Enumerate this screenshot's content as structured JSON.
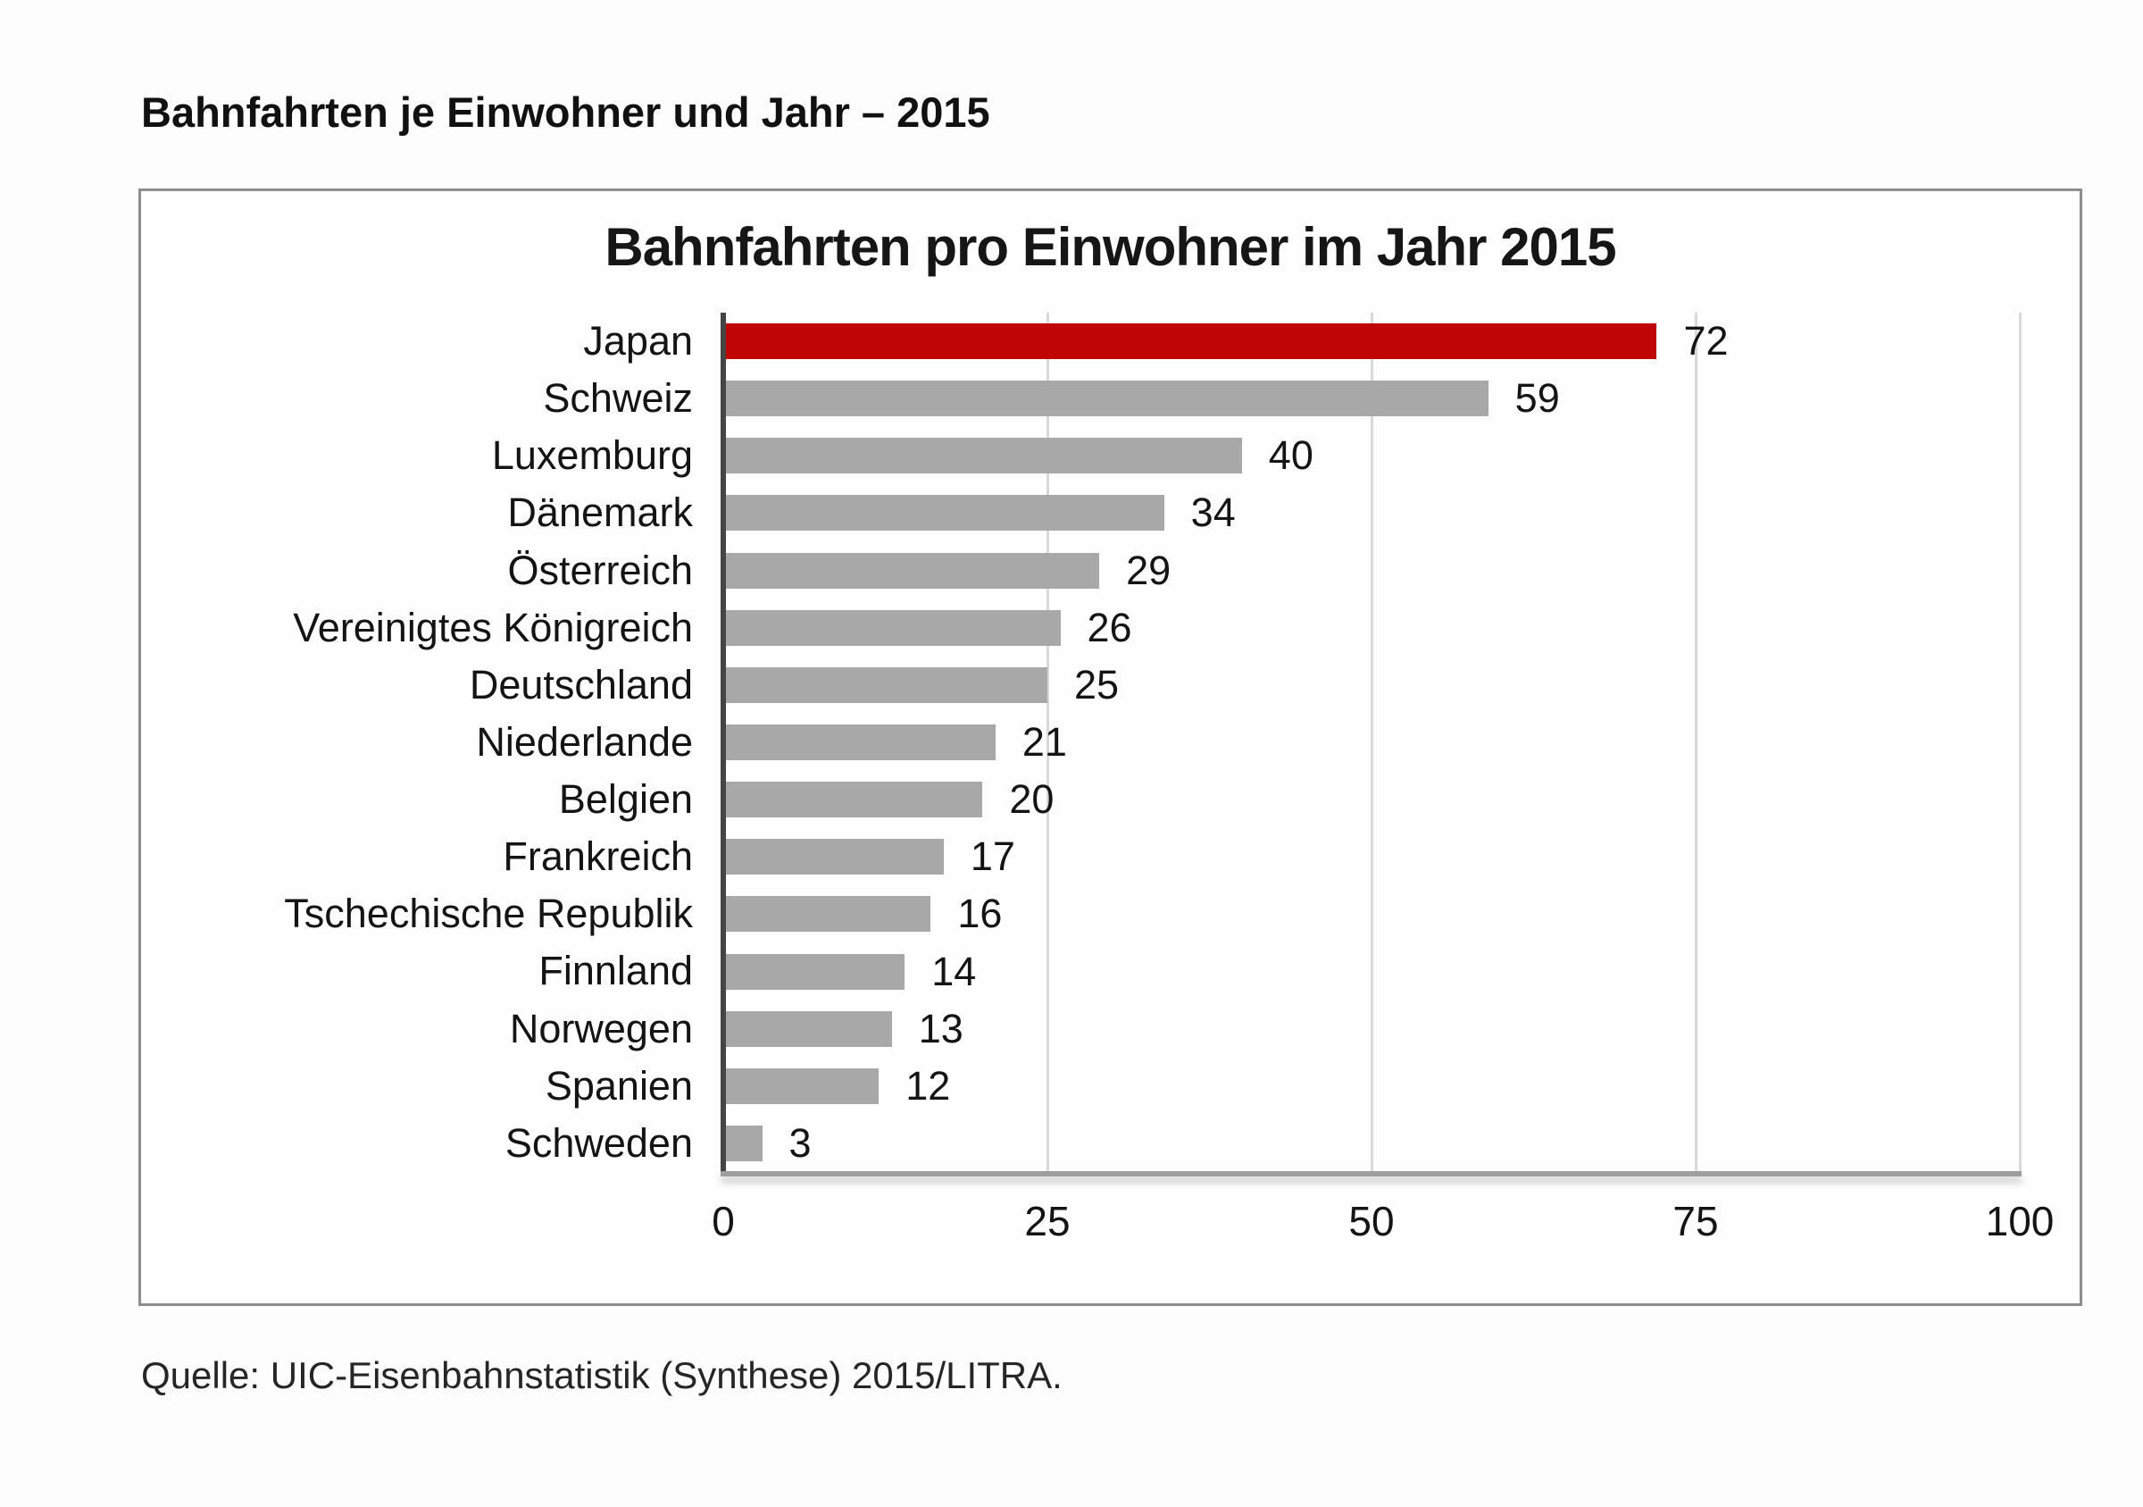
{
  "page": {
    "heading": "Bahnfahrten je Einwohner und Jahr – 2015",
    "source": "Quelle: UIC-Eisenbahnstatistik (Synthese) 2015/LITRA."
  },
  "chart_data": {
    "type": "bar",
    "orientation": "horizontal",
    "title": "Bahnfahrten pro Einwohner im Jahr 2015",
    "categories": [
      "Japan",
      "Schweiz",
      "Luxemburg",
      "Dänemark",
      "Österreich",
      "Vereinigtes Königreich",
      "Deutschland",
      "Niederlande",
      "Belgien",
      "Frankreich",
      "Tschechische Republik",
      "Finnland",
      "Norwegen",
      "Spanien",
      "Schweden"
    ],
    "values": [
      72,
      59,
      40,
      34,
      29,
      26,
      25,
      21,
      20,
      17,
      16,
      14,
      13,
      12,
      3
    ],
    "xlim": [
      0,
      100
    ],
    "x_ticks": [
      0,
      25,
      50,
      75,
      100
    ],
    "highlight_index": 0,
    "grid": true,
    "legend": false,
    "colors": {
      "highlight_bar": "#c00505",
      "default_bar": "#a8a8a8",
      "gridline": "#d9d9d9",
      "y_axis_line": "#454545",
      "x_axis_line": "#9e9e9e"
    }
  }
}
